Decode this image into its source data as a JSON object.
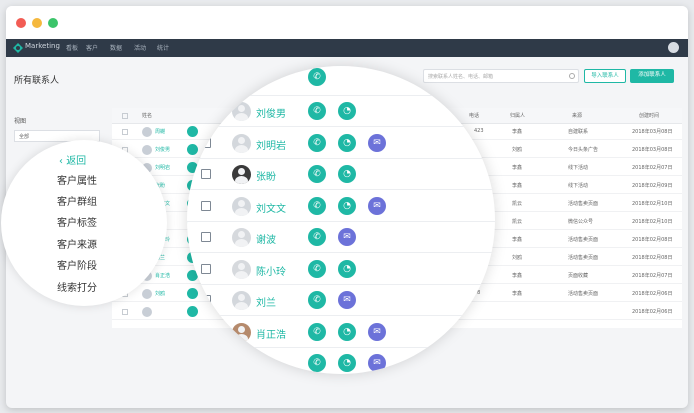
{
  "nav": {
    "app": "Marketing",
    "items": [
      "看板",
      "客户",
      "数据",
      "活动",
      "统计"
    ]
  },
  "page": {
    "title": "所有联系人",
    "search_placeholder": "搜索联系人姓名、电话、邮箱",
    "import_label": "导入联系人",
    "add_label": "添加联系人"
  },
  "sidebar": {
    "view_label": "视图",
    "select_value": "全部"
  },
  "table": {
    "headers": [
      "姓名",
      "电话",
      "归属人",
      "来源",
      "创建时间"
    ],
    "rows": [
      {
        "name": "周樾",
        "phone": "423",
        "owner": "李鑫",
        "source": "自建联系",
        "time": "2018年03月08日"
      },
      {
        "name": "刘俊男",
        "phone": "",
        "owner": "刘鸥",
        "source": "今日头条广告",
        "time": "2018年03月08日"
      },
      {
        "name": "刘明岩",
        "phone": "",
        "owner": "李鑫",
        "source": "线下活动",
        "time": "2018年02月07日"
      },
      {
        "name": "张盼",
        "phone": "",
        "owner": "李鑫",
        "source": "线下活动",
        "time": "2018年02月09日"
      },
      {
        "name": "刘文文",
        "phone": "",
        "owner": "凯云",
        "source": "活动售卖页面",
        "time": "2018年02月10日"
      },
      {
        "name": "谢波",
        "phone": "",
        "owner": "凯云",
        "source": "微信公众号",
        "time": "2018年02月10日"
      },
      {
        "name": "陈小玲",
        "phone": "",
        "owner": "李鑫",
        "source": "活动售卖页面",
        "time": "2018年02月08日"
      },
      {
        "name": "刘兰",
        "phone": "",
        "owner": "刘鸥",
        "source": "活动售卖页面",
        "time": "2018年02月08日"
      },
      {
        "name": "肖正浩",
        "phone": "",
        "owner": "李鑫",
        "source": "页面收藏",
        "time": "2018年02月07日"
      },
      {
        "name": "刘鸥",
        "phone": "78",
        "owner": "李鑫",
        "source": "活动售卖页面",
        "time": "2018年02月06日"
      },
      {
        "name": "",
        "phone": "",
        "owner": "",
        "source": "",
        "time": "2018年02月06日"
      }
    ]
  },
  "left_menu": {
    "back": "返回",
    "items": [
      "客户属性",
      "客户群组",
      "客户标签",
      "客户来源",
      "客户阶段",
      "线索打分"
    ]
  },
  "zoom_rows": [
    {
      "name": "刘俊男",
      "avatar": "person",
      "wechat": true,
      "mail": false
    },
    {
      "name": "刘明岩",
      "avatar": "person",
      "wechat": true,
      "mail": true
    },
    {
      "name": "张盼",
      "avatar": "dark",
      "wechat": true,
      "mail": false
    },
    {
      "name": "刘文文",
      "avatar": "cartoon",
      "wechat": true,
      "mail": true
    },
    {
      "name": "谢波",
      "avatar": "placeholder",
      "wechat": false,
      "mail": true
    },
    {
      "name": "陈小玲",
      "avatar": "placeholder",
      "wechat": true,
      "mail": false
    },
    {
      "name": "刘兰",
      "avatar": "cartoon",
      "wechat": false,
      "mail": true
    },
    {
      "name": "肖正浩",
      "avatar": "skin",
      "wechat": true,
      "mail": true
    },
    {
      "name": "",
      "avatar": "person",
      "wechat": true,
      "mail": true
    }
  ]
}
